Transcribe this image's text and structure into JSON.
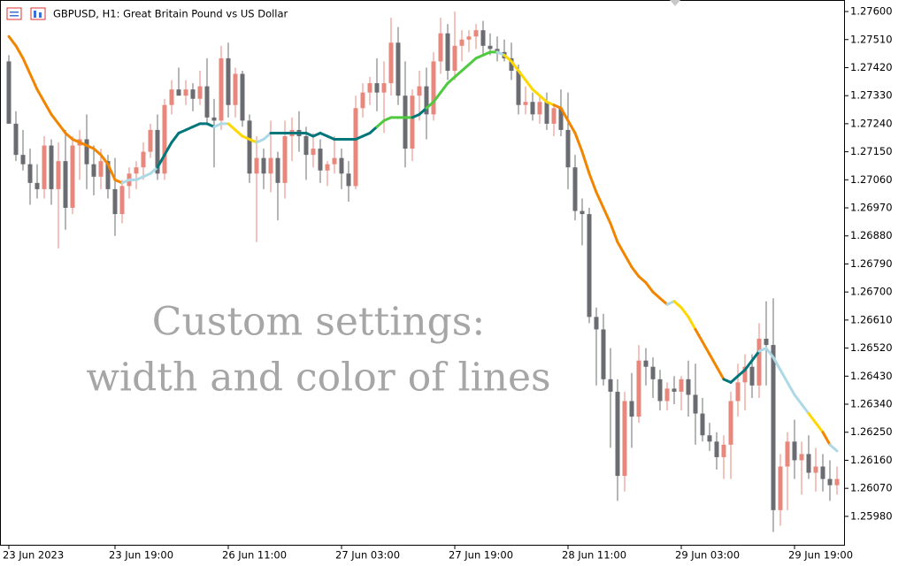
{
  "chart_data": {
    "type": "candlestick",
    "title": "GBPUSD, H1:  Great Britain Pound vs US Dollar",
    "annotations": [
      "Custom settings:",
      "width and color of lines"
    ],
    "up_color": "#e8877b",
    "down_color": "#6b6c72",
    "categories": [
      "23 Jun 2023",
      null,
      null,
      null,
      null,
      null,
      null,
      null,
      null,
      null,
      null,
      null,
      null,
      null,
      null,
      "23 Jun 19:00",
      null,
      null,
      null,
      null,
      null,
      null,
      null,
      null,
      null,
      null,
      null,
      null,
      null,
      null,
      null,
      "26 Jun 11:00",
      null,
      null,
      null,
      null,
      null,
      null,
      null,
      null,
      null,
      null,
      null,
      null,
      null,
      null,
      null,
      "27 Jun 03:00",
      null,
      null,
      null,
      null,
      null,
      null,
      null,
      null,
      null,
      null,
      null,
      null,
      null,
      null,
      null,
      "27 Jun 19:00",
      null,
      null,
      null,
      null,
      null,
      null,
      null,
      null,
      null,
      null,
      null,
      null,
      null,
      null,
      null,
      "28 Jun 11:00",
      null,
      null,
      null,
      null,
      null,
      null,
      null,
      null,
      null,
      null,
      null,
      null,
      null,
      null,
      null,
      "29 Jun 03:00",
      null,
      null,
      null,
      null,
      null,
      null,
      null,
      null,
      null,
      null,
      null,
      null,
      null,
      null,
      null,
      "29 Jun 19:00",
      null,
      null,
      null,
      null,
      null,
      null
    ],
    "open": [
      1.2744,
      1.2724,
      1.2714,
      1.2711,
      1.2705,
      1.2703,
      1.2717,
      1.2703,
      1.2712,
      1.2697,
      1.2717,
      1.2719,
      1.2711,
      1.2707,
      1.2712,
      1.2703,
      1.2695,
      1.2704,
      1.2708,
      1.271,
      1.2715,
      1.2722,
      1.2708,
      1.273,
      1.2735,
      1.2733,
      1.2735,
      1.2732,
      1.2736,
      1.2726,
      1.2725,
      1.2745,
      1.273,
      1.274,
      1.2725,
      1.2708,
      1.2713,
      1.2708,
      1.2713,
      1.2705,
      1.272,
      1.2722,
      1.272,
      1.2714,
      1.2716,
      1.2709,
      1.2711,
      1.2713,
      1.2708,
      1.2704,
      1.2729,
      1.2734,
      1.2737,
      1.2734,
      1.2737,
      1.275,
      1.2733,
      1.2716,
      1.2733,
      1.2736,
      1.2727,
      1.2744,
      1.2753,
      1.2741,
      1.2749,
      1.2751,
      1.2752,
      1.2754,
      1.2749,
      1.2748,
      1.2747,
      1.2745,
      1.2741,
      1.273,
      1.2731,
      1.2727,
      1.2731,
      1.2724,
      1.2729,
      1.2722,
      1.271,
      1.2696,
      1.2695,
      1.2662,
      1.2658,
      1.2642,
      1.2638,
      1.2611,
      1.2635,
      1.263,
      1.2648,
      1.2646,
      1.2642,
      1.2635,
      1.2639,
      1.2638,
      1.2642,
      1.2637,
      1.2631,
      1.2624,
      1.2622,
      1.2617,
      1.2621,
      1.2635,
      1.2641,
      1.2646,
      1.264,
      1.2655,
      1.2653,
      1.26,
      1.2614,
      1.2622,
      1.2616,
      1.2618,
      1.2612,
      1.2614,
      1.261,
      1.2608
    ],
    "high": [
      1.2746,
      1.2728,
      1.2722,
      1.2716,
      1.2711,
      1.272,
      1.2719,
      1.2718,
      1.2722,
      1.272,
      1.2722,
      1.2727,
      1.2717,
      1.2716,
      1.2714,
      1.2713,
      1.2706,
      1.271,
      1.2712,
      1.2718,
      1.2724,
      1.2727,
      1.2732,
      1.2738,
      1.2742,
      1.2738,
      1.2737,
      1.2741,
      1.2745,
      1.2732,
      1.2749,
      1.275,
      1.2742,
      1.2741,
      1.2727,
      1.272,
      1.2716,
      1.2725,
      1.2715,
      1.2725,
      1.2726,
      1.2728,
      1.2723,
      1.2721,
      1.2719,
      1.2712,
      1.272,
      1.2716,
      1.2712,
      1.2733,
      1.2737,
      1.2739,
      1.2745,
      1.2744,
      1.2758,
      1.2755,
      1.2744,
      1.2735,
      1.2741,
      1.2742,
      1.2747,
      1.2758,
      1.2756,
      1.276,
      1.2754,
      1.2754,
      1.2756,
      1.2757,
      1.2753,
      1.2752,
      1.2751,
      1.275,
      1.2743,
      1.2736,
      1.2734,
      1.2733,
      1.2734,
      1.273,
      1.2735,
      1.2734,
      1.2714,
      1.27,
      1.2697,
      1.2665,
      1.2663,
      1.2652,
      1.2642,
      1.2638,
      1.2644,
      1.2653,
      1.2652,
      1.2649,
      1.2645,
      1.2641,
      1.2643,
      1.2643,
      1.2648,
      1.2647,
      1.2636,
      1.2628,
      1.2625,
      1.2624,
      1.2638,
      1.2647,
      1.265,
      1.265,
      1.266,
      1.2667,
      1.2668,
      1.2618,
      1.2625,
      1.2629,
      1.2622,
      1.2624,
      1.262,
      1.2618,
      1.2616,
      1.2614
    ],
    "low": [
      1.2724,
      1.2712,
      1.2709,
      1.2698,
      1.27,
      1.27,
      1.2698,
      1.2684,
      1.269,
      1.2695,
      1.2706,
      1.2703,
      1.2701,
      1.2703,
      1.27,
      1.2688,
      1.2692,
      1.27,
      1.2703,
      1.2706,
      1.2713,
      1.2706,
      1.2706,
      1.2727,
      1.2733,
      1.273,
      1.2728,
      1.273,
      1.2724,
      1.271,
      1.2722,
      1.2726,
      1.2726,
      1.2723,
      1.2705,
      1.2686,
      1.2703,
      1.2702,
      1.2693,
      1.27,
      1.2712,
      1.2715,
      1.2706,
      1.271,
      1.2705,
      1.2704,
      1.2708,
      1.2703,
      1.2699,
      1.2703,
      1.2726,
      1.273,
      1.2728,
      1.2721,
      1.2733,
      1.273,
      1.271,
      1.2712,
      1.2725,
      1.2719,
      1.2725,
      1.274,
      1.2738,
      1.2738,
      1.2744,
      1.2747,
      1.2748,
      1.2746,
      1.2746,
      1.2744,
      1.2744,
      1.2738,
      1.2727,
      1.2727,
      1.2725,
      1.2724,
      1.2722,
      1.272,
      1.272,
      1.2703,
      1.2693,
      1.2685,
      1.266,
      1.264,
      1.264,
      1.262,
      1.2603,
      1.2606,
      1.262,
      1.2628,
      1.264,
      1.2636,
      1.2632,
      1.2632,
      1.2634,
      1.2632,
      1.263,
      1.2621,
      1.2622,
      1.2619,
      1.2613,
      1.261,
      1.261,
      1.263,
      1.2632,
      1.2636,
      1.2636,
      1.264,
      1.2593,
      1.2595,
      1.26,
      1.261,
      1.2605,
      1.261,
      1.2606,
      1.2606,
      1.2603,
      1.2605
    ],
    "close": [
      1.2724,
      1.2714,
      1.2711,
      1.2705,
      1.2703,
      1.2717,
      1.2703,
      1.2712,
      1.2697,
      1.2717,
      1.2719,
      1.2711,
      1.2707,
      1.2712,
      1.2703,
      1.2695,
      1.2704,
      1.2708,
      1.271,
      1.2715,
      1.2722,
      1.2708,
      1.273,
      1.2735,
      1.2733,
      1.2735,
      1.2732,
      1.2736,
      1.2726,
      1.2725,
      1.2745,
      1.273,
      1.274,
      1.2725,
      1.2708,
      1.2713,
      1.2708,
      1.2713,
      1.2705,
      1.272,
      1.2722,
      1.272,
      1.2714,
      1.2716,
      1.2709,
      1.2711,
      1.2713,
      1.2708,
      1.2704,
      1.2729,
      1.2734,
      1.2737,
      1.2734,
      1.2737,
      1.275,
      1.2733,
      1.2716,
      1.2733,
      1.2736,
      1.2727,
      1.2744,
      1.2753,
      1.2741,
      1.2749,
      1.2751,
      1.2752,
      1.2754,
      1.2749,
      1.2748,
      1.2747,
      1.2745,
      1.2741,
      1.273,
      1.2731,
      1.2727,
      1.2731,
      1.2724,
      1.2729,
      1.2722,
      1.271,
      1.2696,
      1.2695,
      1.2662,
      1.2658,
      1.2642,
      1.2638,
      1.2611,
      1.2635,
      1.263,
      1.2648,
      1.2646,
      1.2642,
      1.2635,
      1.2639,
      1.2638,
      1.2642,
      1.2637,
      1.2631,
      1.2624,
      1.2622,
      1.2617,
      1.2621,
      1.2635,
      1.2641,
      1.2646,
      1.264,
      1.2655,
      1.2653,
      1.26,
      1.2614,
      1.2622,
      1.2616,
      1.2618,
      1.2612,
      1.2614,
      1.261,
      1.2608,
      1.261
    ],
    "line": {
      "values": [
        1.2752,
        1.2749,
        1.2745,
        1.274,
        1.2735,
        1.2731,
        1.2727,
        1.2724,
        1.2721,
        1.2719,
        1.2718,
        1.2717,
        1.2716,
        1.2714,
        1.2711,
        1.2706,
        1.2705,
        1.2706,
        1.2706,
        1.2707,
        1.2708,
        1.271,
        1.2714,
        1.2718,
        1.2721,
        1.2722,
        1.2723,
        1.2724,
        1.2724,
        1.2723,
        1.2724,
        1.2724,
        1.2722,
        1.272,
        1.2719,
        1.2718,
        1.2719,
        1.2721,
        1.2721,
        1.2721,
        1.2721,
        1.2721,
        1.2721,
        1.272,
        1.2721,
        1.272,
        1.2719,
        1.2719,
        1.2719,
        1.2719,
        1.272,
        1.2721,
        1.2723,
        1.2725,
        1.2726,
        1.2726,
        1.2726,
        1.2726,
        1.2727,
        1.2729,
        1.2731,
        1.2734,
        1.2737,
        1.2739,
        1.2741,
        1.2743,
        1.2745,
        1.2746,
        1.2747,
        1.2747,
        1.2746,
        1.2744,
        1.2741,
        1.2738,
        1.2735,
        1.2733,
        1.2731,
        1.273,
        1.2729,
        1.2725,
        1.2721,
        1.2715,
        1.2708,
        1.2702,
        1.2697,
        1.2692,
        1.2686,
        1.2682,
        1.2678,
        1.2675,
        1.2673,
        1.267,
        1.2668,
        1.2666,
        1.2667,
        1.2665,
        1.2662,
        1.2658,
        1.2654,
        1.265,
        1.2646,
        1.2642,
        1.2641,
        1.2643,
        1.2645,
        1.2648,
        1.2651,
        1.2652,
        1.2649,
        1.2645,
        1.2641,
        1.2637,
        1.2634,
        1.2631,
        1.2628,
        1.2625,
        1.2621,
        1.2619
      ],
      "colors": [
        "#f28500",
        "#f28500",
        "#f28500",
        "#f28500",
        "#f28500",
        "#f28500",
        "#f28500",
        "#f28500",
        "#f28500",
        "#f28500",
        "#f28500",
        "#f28500",
        "#f28500",
        "#f28500",
        "#f28500",
        "#f28500",
        "#f28500",
        "#add8e6",
        "#add8e6",
        "#add8e6",
        "#add8e6",
        "#add8e6",
        "#00757a",
        "#00757a",
        "#00757a",
        "#00757a",
        "#00757a",
        "#00757a",
        "#00757a",
        "#00757a",
        "#add8e6",
        "#add8e6",
        "#ffd700",
        "#ffd700",
        "#ffd700",
        "#ffd700",
        "#add8e6",
        "#add8e6",
        "#00757a",
        "#00757a",
        "#00757a",
        "#00757a",
        "#00757a",
        "#00757a",
        "#00757a",
        "#00757a",
        "#00757a",
        "#00757a",
        "#00757a",
        "#00757a",
        "#00757a",
        "#00757a",
        "#00757a",
        "#4fc93f",
        "#4fc93f",
        "#4fc93f",
        "#4fc93f",
        "#4fc93f",
        "#00757a",
        "#00757a",
        "#4fc93f",
        "#4fc93f",
        "#4fc93f",
        "#4fc93f",
        "#4fc93f",
        "#4fc93f",
        "#4fc93f",
        "#4fc93f",
        "#4fc93f",
        "#4fc93f",
        "#add8e6",
        "#ffd700",
        "#ffd700",
        "#ffd700",
        "#ffd700",
        "#ffd700",
        "#ffd700",
        "#ffd700",
        "#f28500",
        "#f28500",
        "#f28500",
        "#f28500",
        "#f28500",
        "#f28500",
        "#f28500",
        "#f28500",
        "#f28500",
        "#f28500",
        "#f28500",
        "#f28500",
        "#f28500",
        "#f28500",
        "#f28500",
        "#f28500",
        "#add8e6",
        "#ffd700",
        "#ffd700",
        "#ffd700",
        "#f28500",
        "#f28500",
        "#f28500",
        "#f28500",
        "#00757a",
        "#00757a",
        "#00757a",
        "#00757a",
        "#00757a",
        "#add8e6",
        "#add8e6",
        "#add8e6",
        "#add8e6",
        "#add8e6",
        "#add8e6",
        "#add8e6",
        "#ffd700",
        "#ffd700",
        "#f28500",
        "#add8e6"
      ]
    },
    "ylim": [
      1.25886,
      1.27637
    ],
    "yticks": [
      {
        "value": 1.276,
        "label": "1.27600"
      },
      {
        "value": 1.2751,
        "label": "1.27510"
      },
      {
        "value": 1.2742,
        "label": "1.27420"
      },
      {
        "value": 1.2733,
        "label": "1.27330"
      },
      {
        "value": 1.2724,
        "label": "1.27240"
      },
      {
        "value": 1.2715,
        "label": "1.27150"
      },
      {
        "value": 1.2706,
        "label": "1.27060"
      },
      {
        "value": 1.2697,
        "label": "1.26970"
      },
      {
        "value": 1.2688,
        "label": "1.26880"
      },
      {
        "value": 1.2679,
        "label": "1.26790"
      },
      {
        "value": 1.267,
        "label": "1.26700"
      },
      {
        "value": 1.2661,
        "label": "1.26610"
      },
      {
        "value": 1.2652,
        "label": "1.26520"
      },
      {
        "value": 1.2643,
        "label": "1.26430"
      },
      {
        "value": 1.2634,
        "label": "1.26340"
      },
      {
        "value": 1.2625,
        "label": "1.26250"
      },
      {
        "value": 1.2616,
        "label": "1.26160"
      },
      {
        "value": 1.2607,
        "label": "1.26070"
      },
      {
        "value": 1.2598,
        "label": "1.25980"
      }
    ]
  }
}
